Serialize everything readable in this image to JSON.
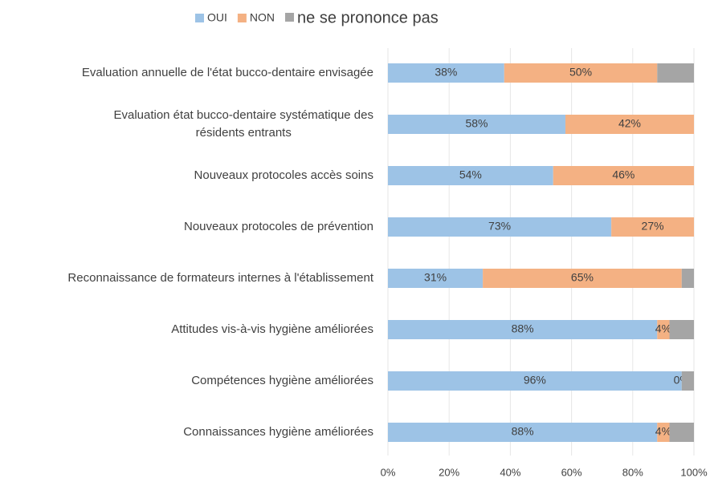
{
  "chart_data": {
    "type": "stacked_barh",
    "categories": [
      "Evaluation annuelle de l'état bucco-dentaire envisagée",
      "Evaluation état bucco-dentaire systématique des\nrésidents entrants",
      "Nouveaux protocoles accès soins",
      "Nouveaux protocoles de prévention",
      "Reconnaissance de formateurs internes à l'établissement",
      "Attitudes vis-à-vis hygiène améliorées",
      "Compétences hygiène améliorées",
      "Connaissances hygiène améliorées"
    ],
    "series": [
      {
        "name": "OUI",
        "color": "#9dc3e6",
        "values": [
          38,
          58,
          54,
          73,
          31,
          88,
          96,
          88
        ],
        "value_labels": [
          "38%",
          "58%",
          "54%",
          "73%",
          "31%",
          "88%",
          "96%",
          "88%"
        ]
      },
      {
        "name": "NON",
        "color": "#f4b183",
        "values": [
          50,
          42,
          46,
          27,
          65,
          4,
          0,
          4
        ],
        "value_labels": [
          "50%",
          "42%",
          "46%",
          "27%",
          "65%",
          "4%",
          "0%",
          "4%"
        ]
      },
      {
        "name": "ne se prononce pas",
        "color": "#a5a5a5",
        "values": [
          12,
          0,
          0,
          0,
          4,
          8,
          4,
          8
        ]
      }
    ],
    "xlim": [
      0,
      100
    ],
    "xticks": [
      {
        "value": 0,
        "label": "0%"
      },
      {
        "value": 20,
        "label": "20%"
      },
      {
        "value": 40,
        "label": "40%"
      },
      {
        "value": 60,
        "label": "60%"
      },
      {
        "value": 80,
        "label": "80%"
      },
      {
        "value": 100,
        "label": "100%"
      }
    ],
    "grid": true,
    "legend": "top"
  }
}
